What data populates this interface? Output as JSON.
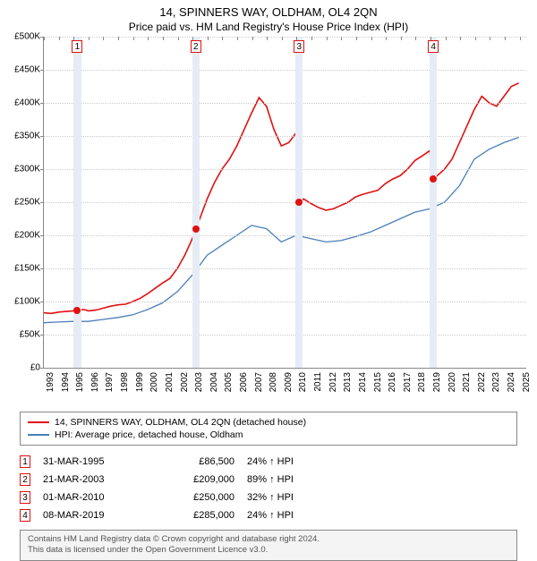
{
  "title": "14, SPINNERS WAY, OLDHAM, OL4 2QN",
  "subtitle": "Price paid vs. HM Land Registry's House Price Index (HPI)",
  "chart": {
    "type": "line",
    "background_color": "#ffffff",
    "grid_color": "#cccccc",
    "axis_color": "#888888",
    "marker_band_color": "#e6ecf5",
    "x_year_min": 1993,
    "x_year_max": 2025.5,
    "x_tick_years": [
      1993,
      1994,
      1995,
      1996,
      1997,
      1998,
      1999,
      2000,
      2001,
      2002,
      2003,
      2004,
      2005,
      2006,
      2007,
      2008,
      2009,
      2010,
      2011,
      2012,
      2013,
      2014,
      2015,
      2016,
      2017,
      2018,
      2019,
      2020,
      2021,
      2022,
      2023,
      2024,
      2025
    ],
    "y_min": 0,
    "y_max": 500000,
    "y_tick_step": 50000,
    "y_tick_labels": [
      "£0",
      "£50K",
      "£100K",
      "£150K",
      "£200K",
      "£250K",
      "£300K",
      "£350K",
      "£400K",
      "£450K",
      "£500K"
    ],
    "series": [
      {
        "name": "property",
        "label": "14, SPINNERS WAY, OLDHAM, OL4 2QN (detached house)",
        "color": "#e01010",
        "line_width": 1.6,
        "points": [
          [
            1993.0,
            83000
          ],
          [
            1993.5,
            82000
          ],
          [
            1994.0,
            84000
          ],
          [
            1994.5,
            85000
          ],
          [
            1995.0,
            86000
          ],
          [
            1995.25,
            86500
          ],
          [
            1995.25,
            86500
          ],
          [
            1995.7,
            88000
          ],
          [
            1996.0,
            86000
          ],
          [
            1996.5,
            87000
          ],
          [
            1997.0,
            90000
          ],
          [
            1997.5,
            93000
          ],
          [
            1998.0,
            95000
          ],
          [
            1998.5,
            96000
          ],
          [
            1999.0,
            100000
          ],
          [
            1999.5,
            105000
          ],
          [
            2000.0,
            112000
          ],
          [
            2000.5,
            120000
          ],
          [
            2001.0,
            128000
          ],
          [
            2001.5,
            135000
          ],
          [
            2002.0,
            150000
          ],
          [
            2002.5,
            170000
          ],
          [
            2003.0,
            195000
          ],
          [
            2003.22,
            209000
          ],
          [
            2003.22,
            209000
          ],
          [
            2003.5,
            225000
          ],
          [
            2004.0,
            255000
          ],
          [
            2004.5,
            280000
          ],
          [
            2005.0,
            300000
          ],
          [
            2005.5,
            315000
          ],
          [
            2006.0,
            335000
          ],
          [
            2006.5,
            360000
          ],
          [
            2007.0,
            385000
          ],
          [
            2007.5,
            408000
          ],
          [
            2008.0,
            395000
          ],
          [
            2008.5,
            360000
          ],
          [
            2009.0,
            335000
          ],
          [
            2009.5,
            340000
          ],
          [
            2010.0,
            355000
          ],
          [
            2010.17,
            250000
          ],
          [
            2010.17,
            250000
          ],
          [
            2010.5,
            255000
          ],
          [
            2011.0,
            248000
          ],
          [
            2011.5,
            242000
          ],
          [
            2012.0,
            238000
          ],
          [
            2012.5,
            240000
          ],
          [
            2013.0,
            245000
          ],
          [
            2013.5,
            250000
          ],
          [
            2014.0,
            258000
          ],
          [
            2014.5,
            262000
          ],
          [
            2015.0,
            265000
          ],
          [
            2015.5,
            268000
          ],
          [
            2016.0,
            278000
          ],
          [
            2016.5,
            285000
          ],
          [
            2017.0,
            290000
          ],
          [
            2017.5,
            300000
          ],
          [
            2018.0,
            313000
          ],
          [
            2018.5,
            320000
          ],
          [
            2019.0,
            328000
          ],
          [
            2019.19,
            285000
          ],
          [
            2019.19,
            285000
          ],
          [
            2019.5,
            290000
          ],
          [
            2020.0,
            300000
          ],
          [
            2020.5,
            315000
          ],
          [
            2021.0,
            340000
          ],
          [
            2021.5,
            365000
          ],
          [
            2022.0,
            390000
          ],
          [
            2022.5,
            410000
          ],
          [
            2023.0,
            400000
          ],
          [
            2023.5,
            395000
          ],
          [
            2024.0,
            410000
          ],
          [
            2024.5,
            425000
          ],
          [
            2025.0,
            430000
          ]
        ]
      },
      {
        "name": "hpi",
        "label": "HPI: Average price, detached house, Oldham",
        "color": "#4a7fb8",
        "line_width": 1.3,
        "points": [
          [
            1993.0,
            68000
          ],
          [
            1994.0,
            69000
          ],
          [
            1995.0,
            70000
          ],
          [
            1996.0,
            70000
          ],
          [
            1997.0,
            73000
          ],
          [
            1998.0,
            76000
          ],
          [
            1999.0,
            80000
          ],
          [
            2000.0,
            88000
          ],
          [
            2001.0,
            98000
          ],
          [
            2002.0,
            115000
          ],
          [
            2003.0,
            140000
          ],
          [
            2004.0,
            170000
          ],
          [
            2005.0,
            185000
          ],
          [
            2006.0,
            200000
          ],
          [
            2007.0,
            215000
          ],
          [
            2008.0,
            210000
          ],
          [
            2009.0,
            190000
          ],
          [
            2010.0,
            200000
          ],
          [
            2011.0,
            195000
          ],
          [
            2012.0,
            190000
          ],
          [
            2013.0,
            192000
          ],
          [
            2014.0,
            198000
          ],
          [
            2015.0,
            205000
          ],
          [
            2016.0,
            215000
          ],
          [
            2017.0,
            225000
          ],
          [
            2018.0,
            235000
          ],
          [
            2019.0,
            240000
          ],
          [
            2020.0,
            250000
          ],
          [
            2021.0,
            275000
          ],
          [
            2022.0,
            315000
          ],
          [
            2023.0,
            330000
          ],
          [
            2024.0,
            340000
          ],
          [
            2025.0,
            348000
          ]
        ]
      }
    ],
    "markers": [
      {
        "n": "1",
        "year": 1995.25,
        "price": 86500,
        "color": "#e01010"
      },
      {
        "n": "2",
        "year": 2003.22,
        "price": 209000,
        "color": "#e01010"
      },
      {
        "n": "3",
        "year": 2010.17,
        "price": 250000,
        "color": "#e01010"
      },
      {
        "n": "4",
        "year": 2019.19,
        "price": 285000,
        "color": "#e01010"
      }
    ],
    "marker_band_months": 6,
    "title_fontsize": 13,
    "subtitle_fontsize": 12,
    "axis_label_fontsize": 10
  },
  "legend": {
    "border_color": "#888888",
    "items": [
      {
        "color": "#e01010",
        "label": "14, SPINNERS WAY, OLDHAM, OL4 2QN (detached house)"
      },
      {
        "color": "#4a7fb8",
        "label": "HPI: Average price, detached house, Oldham"
      }
    ]
  },
  "transactions": {
    "arrow_glyph": "↑",
    "hpi_suffix": "HPI",
    "marker_border_color": "#e01010",
    "rows": [
      {
        "n": "1",
        "date": "31-MAR-1995",
        "price": "£86,500",
        "pct": "24%"
      },
      {
        "n": "2",
        "date": "21-MAR-2003",
        "price": "£209,000",
        "pct": "89%"
      },
      {
        "n": "3",
        "date": "01-MAR-2010",
        "price": "£250,000",
        "pct": "32%"
      },
      {
        "n": "4",
        "date": "08-MAR-2019",
        "price": "£285,000",
        "pct": "24%"
      }
    ]
  },
  "attribution": {
    "line1": "Contains HM Land Registry data © Crown copyright and database right 2024.",
    "line2": "This data is licensed under the Open Government Licence v3.0.",
    "background_color": "#f4f4f4",
    "border_color": "#888888",
    "text_color": "#555555"
  }
}
